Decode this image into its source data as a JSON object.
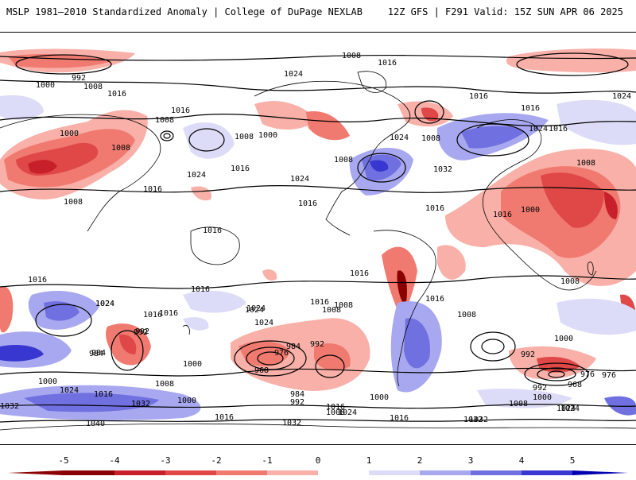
{
  "header": {
    "title_left": "MSLP 1981–2010 Standardized Anomaly | College of DuPage NEXLAB",
    "title_right": "12Z GFS | F291 Valid: 15Z SUN APR 06 2025"
  },
  "colorbar": {
    "ticks": [
      "-5",
      "-4",
      "-3",
      "-2",
      "-1",
      "0",
      "1",
      "2",
      "3",
      "4",
      "5"
    ],
    "colors": [
      "#8b0000",
      "#c8202a",
      "#e04848",
      "#f07a70",
      "#f8b0a8",
      "#ffffff",
      "#dcdcf8",
      "#a8a8f0",
      "#7070e0",
      "#3838d0",
      "#0000b0"
    ]
  },
  "map": {
    "ocean_color": "#ffffff",
    "coast_color": "#000000",
    "contour_labels": [
      "1008",
      "1016",
      "992",
      "1000",
      "1008",
      "1016",
      "1024",
      "1016",
      "1024",
      "1016",
      "1008",
      "1000",
      "1008",
      "1016",
      "1008",
      "1000",
      "1008",
      "1016",
      "1024",
      "1016",
      "1024",
      "1016",
      "1024",
      "1032",
      "1024",
      "1016",
      "1008",
      "1008",
      "1016",
      "1008",
      "1016",
      "1016",
      "1008",
      "1000",
      "1024",
      "1016",
      "1016",
      "992",
      "1016",
      "984",
      "1000",
      "1024",
      "1016",
      "1008",
      "976",
      "984",
      "968",
      "992",
      "1000",
      "1016",
      "1024",
      "992",
      "984",
      "1032",
      "1040",
      "1032",
      "1000",
      "992",
      "984",
      "976",
      "968",
      "1032",
      "1024",
      "1008",
      "1016",
      "1024",
      "1032",
      "1000",
      "1016",
      "1008",
      "1016",
      "1024",
      "1016",
      "1008",
      "1000",
      "992",
      "976",
      "1008",
      "992",
      "1000",
      "1024",
      "1024",
      "1016",
      "1032",
      "1024",
      "1016",
      "1008"
    ]
  }
}
